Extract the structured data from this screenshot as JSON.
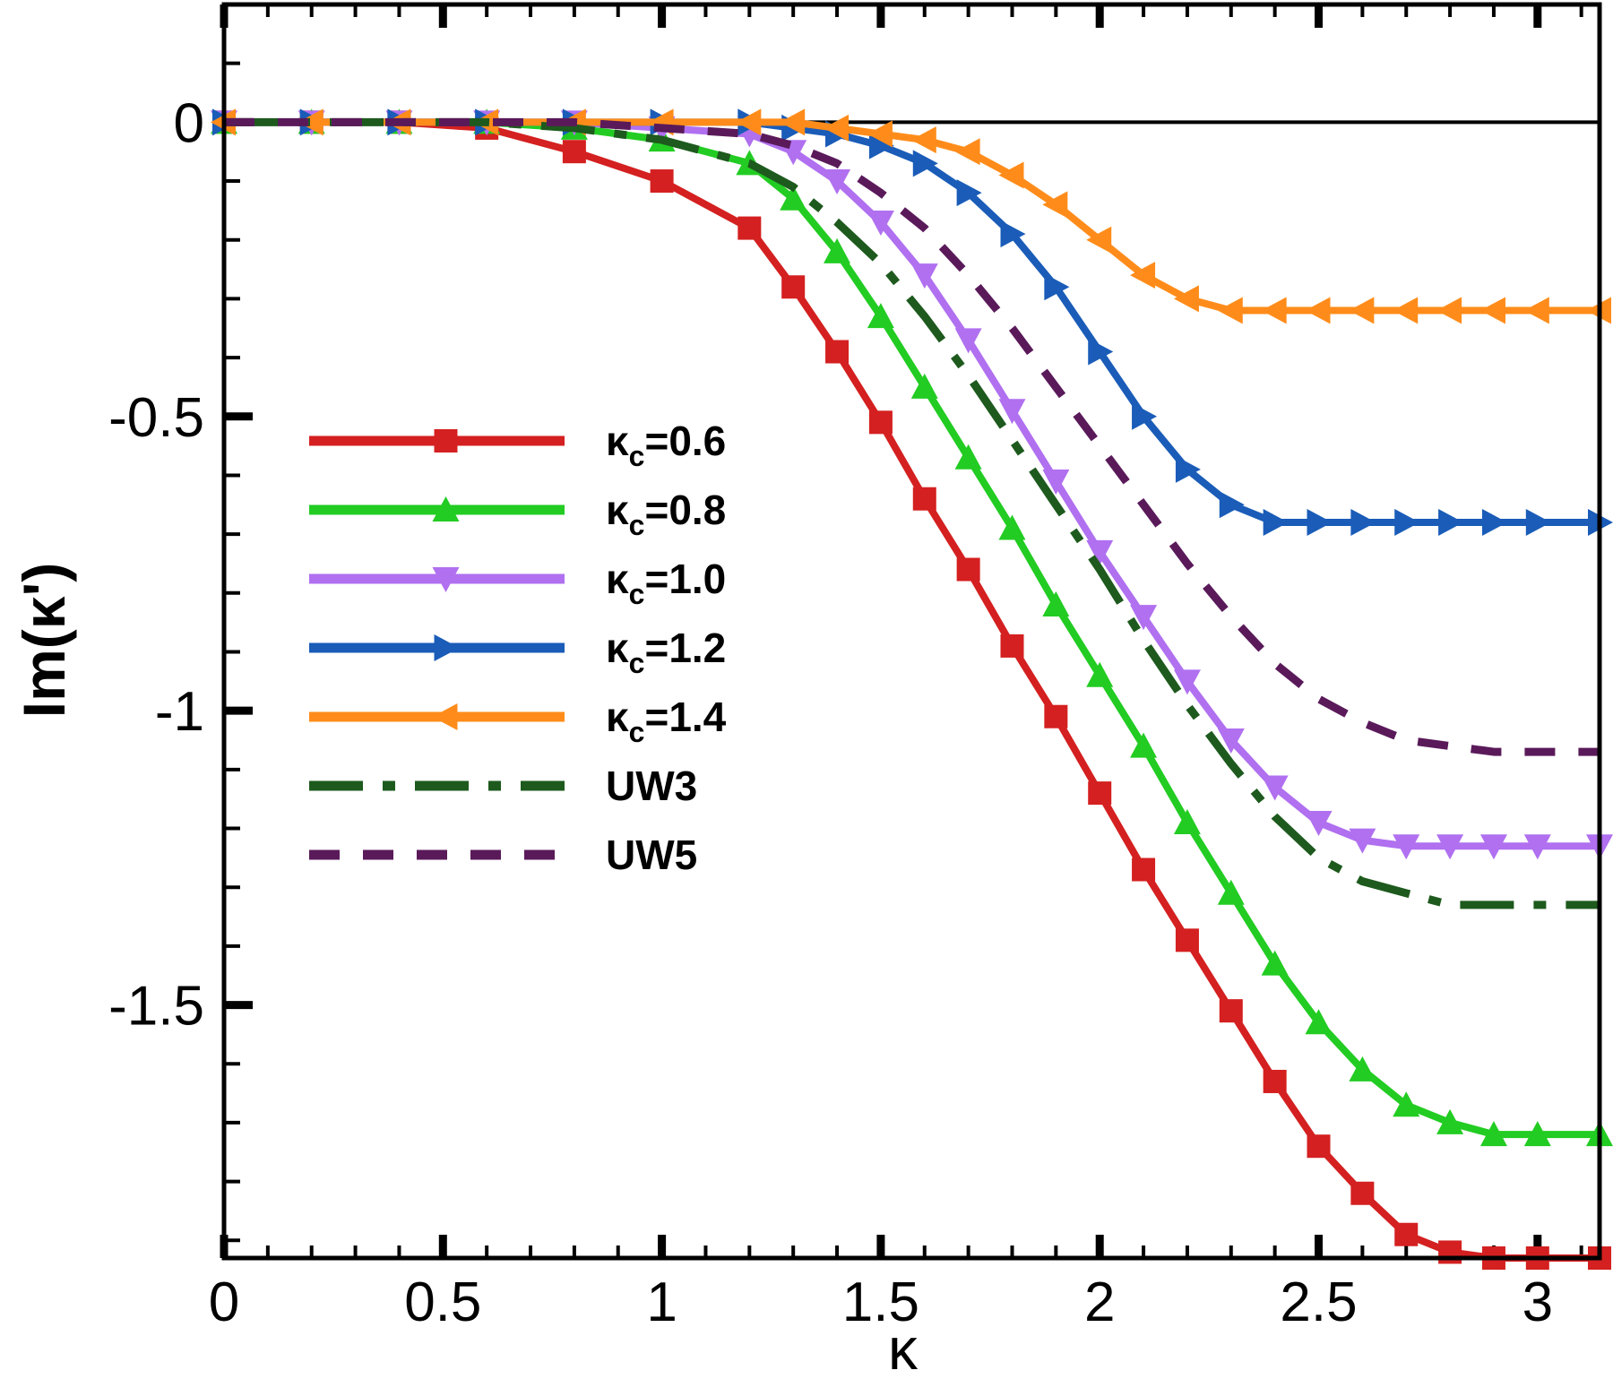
{
  "chart_data": {
    "type": "line",
    "title": "",
    "xlabel": "κ",
    "ylabel": "Im(κ')",
    "xlim": [
      0,
      3.1416
    ],
    "ylim": [
      -1.93,
      0.2
    ],
    "xticks": [
      0,
      0.5,
      1,
      1.5,
      2,
      2.5,
      3
    ],
    "xtick_labels": [
      "0",
      "0.5",
      "1",
      "1.5",
      "2",
      "2.5",
      "3"
    ],
    "yticks": [
      0,
      -0.5,
      -1,
      -1.5
    ],
    "ytick_labels": [
      "0",
      "-0.5",
      "-1",
      "-1.5"
    ],
    "grid": false,
    "legend_position": "center-left",
    "series": [
      {
        "name": "κc=0.6",
        "legend_prefix": "κ",
        "legend_sub": "c",
        "legend_value": "=0.6",
        "color": "#d42020",
        "marker": "square",
        "dash": "solid",
        "x": [
          0,
          0.2,
          0.4,
          0.6,
          0.8,
          1.0,
          1.2,
          1.3,
          1.4,
          1.5,
          1.6,
          1.7,
          1.8,
          1.9,
          2.0,
          2.1,
          2.2,
          2.3,
          2.4,
          2.5,
          2.6,
          2.7,
          2.8,
          2.9,
          3.0,
          3.1416
        ],
        "y": [
          0,
          0,
          0,
          -0.01,
          -0.05,
          -0.1,
          -0.18,
          -0.28,
          -0.39,
          -0.51,
          -0.64,
          -0.76,
          -0.89,
          -1.01,
          -1.14,
          -1.27,
          -1.39,
          -1.51,
          -1.63,
          -1.74,
          -1.82,
          -1.89,
          -1.92,
          -1.93,
          -1.93,
          -1.93
        ]
      },
      {
        "name": "κc=0.8",
        "legend_prefix": "κ",
        "legend_sub": "c",
        "legend_value": "=0.8",
        "color": "#22cc22",
        "marker": "triangle-up",
        "dash": "solid",
        "x": [
          0,
          0.2,
          0.4,
          0.6,
          0.8,
          1.0,
          1.2,
          1.3,
          1.4,
          1.5,
          1.6,
          1.7,
          1.8,
          1.9,
          2.0,
          2.1,
          2.2,
          2.3,
          2.4,
          2.5,
          2.6,
          2.7,
          2.8,
          2.9,
          3.0,
          3.1416
        ],
        "y": [
          0,
          0,
          0,
          0,
          -0.01,
          -0.03,
          -0.07,
          -0.13,
          -0.22,
          -0.33,
          -0.45,
          -0.57,
          -0.69,
          -0.82,
          -0.94,
          -1.06,
          -1.19,
          -1.31,
          -1.43,
          -1.53,
          -1.61,
          -1.67,
          -1.7,
          -1.72,
          -1.72,
          -1.72
        ]
      },
      {
        "name": "κc=1.0",
        "legend_prefix": "κ",
        "legend_sub": "c",
        "legend_value": "=1.0",
        "color": "#b070f0",
        "marker": "triangle-down",
        "dash": "solid",
        "x": [
          0,
          0.2,
          0.4,
          0.6,
          0.8,
          1.0,
          1.2,
          1.3,
          1.4,
          1.5,
          1.6,
          1.7,
          1.8,
          1.9,
          2.0,
          2.1,
          2.2,
          2.3,
          2.4,
          2.5,
          2.6,
          2.7,
          2.8,
          2.9,
          3.0,
          3.1416
        ],
        "y": [
          0,
          0,
          0,
          0,
          0,
          -0.01,
          -0.02,
          -0.05,
          -0.1,
          -0.17,
          -0.26,
          -0.37,
          -0.49,
          -0.61,
          -0.73,
          -0.84,
          -0.95,
          -1.05,
          -1.13,
          -1.19,
          -1.22,
          -1.23,
          -1.23,
          -1.23,
          -1.23,
          -1.23
        ]
      },
      {
        "name": "κc=1.2",
        "legend_prefix": "κ",
        "legend_sub": "c",
        "legend_value": "=1.2",
        "color": "#1a5cb8",
        "marker": "triangle-right",
        "dash": "solid",
        "x": [
          0,
          0.2,
          0.4,
          0.6,
          0.8,
          1.0,
          1.2,
          1.3,
          1.4,
          1.5,
          1.6,
          1.7,
          1.8,
          1.9,
          2.0,
          2.1,
          2.2,
          2.3,
          2.4,
          2.5,
          2.6,
          2.7,
          2.8,
          2.9,
          3.0,
          3.1416
        ],
        "y": [
          0,
          0,
          0,
          0,
          0,
          0,
          0,
          -0.01,
          -0.02,
          -0.04,
          -0.07,
          -0.12,
          -0.19,
          -0.28,
          -0.39,
          -0.5,
          -0.59,
          -0.65,
          -0.68,
          -0.68,
          -0.68,
          -0.68,
          -0.68,
          -0.68,
          -0.68,
          -0.68
        ]
      },
      {
        "name": "κc=1.4",
        "legend_prefix": "κ",
        "legend_sub": "c",
        "legend_value": "=1.4",
        "color": "#ff8c1a",
        "marker": "triangle-left",
        "dash": "solid",
        "x": [
          0,
          0.2,
          0.4,
          0.6,
          0.8,
          1.0,
          1.2,
          1.3,
          1.4,
          1.5,
          1.6,
          1.7,
          1.8,
          1.9,
          2.0,
          2.1,
          2.2,
          2.3,
          2.4,
          2.5,
          2.6,
          2.7,
          2.8,
          2.9,
          3.0,
          3.1416
        ],
        "y": [
          0,
          0,
          0,
          0,
          0,
          0,
          0,
          0,
          -0.01,
          -0.02,
          -0.03,
          -0.05,
          -0.09,
          -0.14,
          -0.2,
          -0.26,
          -0.3,
          -0.32,
          -0.32,
          -0.32,
          -0.32,
          -0.32,
          -0.32,
          -0.32,
          -0.32,
          -0.32
        ]
      },
      {
        "name": "UW3",
        "legend_prefix": "",
        "legend_sub": "",
        "legend_value": "UW3",
        "color": "#1e5a1e",
        "marker": "none",
        "dash": "dashdot",
        "x": [
          0,
          0.2,
          0.4,
          0.6,
          0.8,
          1.0,
          1.2,
          1.3,
          1.4,
          1.5,
          1.6,
          1.7,
          1.8,
          1.9,
          2.0,
          2.1,
          2.2,
          2.3,
          2.4,
          2.5,
          2.6,
          2.7,
          2.8,
          2.9,
          3.0,
          3.1416
        ],
        "y": [
          0,
          0,
          0,
          0,
          -0.01,
          -0.03,
          -0.07,
          -0.11,
          -0.17,
          -0.24,
          -0.33,
          -0.43,
          -0.54,
          -0.65,
          -0.76,
          -0.88,
          -0.99,
          -1.09,
          -1.18,
          -1.25,
          -1.29,
          -1.31,
          -1.33,
          -1.33,
          -1.33,
          -1.33
        ]
      },
      {
        "name": "UW5",
        "legend_prefix": "",
        "legend_sub": "",
        "legend_value": "UW5",
        "color": "#5a1a5a",
        "marker": "none",
        "dash": "dash",
        "x": [
          0,
          0.2,
          0.4,
          0.6,
          0.8,
          1.0,
          1.2,
          1.3,
          1.4,
          1.5,
          1.6,
          1.7,
          1.8,
          1.9,
          2.0,
          2.1,
          2.2,
          2.3,
          2.4,
          2.5,
          2.6,
          2.7,
          2.8,
          2.9,
          3.0,
          3.1416
        ],
        "y": [
          0,
          0,
          0,
          0,
          0,
          -0.01,
          -0.02,
          -0.04,
          -0.07,
          -0.12,
          -0.18,
          -0.26,
          -0.35,
          -0.45,
          -0.55,
          -0.65,
          -0.75,
          -0.84,
          -0.92,
          -0.98,
          -1.02,
          -1.05,
          -1.06,
          -1.07,
          -1.07,
          -1.07
        ]
      }
    ]
  }
}
